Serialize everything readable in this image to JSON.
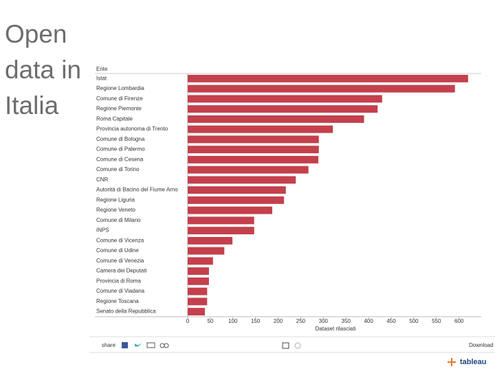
{
  "slide_title": "Open data in Italia",
  "chart_data": {
    "type": "bar",
    "orientation": "horizontal",
    "category_label": "Ente",
    "x_label": "Dataset rilasciati",
    "categories": [
      "Istat",
      "Regione Lombardia",
      "Comune di Firenze",
      "Regione Piemonte",
      "Roma Capitale",
      "Provincia autonoma di Trento",
      "Comune di Bologna",
      "Comune di Palermo",
      "Comune di Cesena",
      "Comune di Torino",
      "CNR",
      "Autorità di Bacino del Fiume Arno",
      "Regione Liguria",
      "Regione Veneto",
      "Comune di Milano",
      "INPS",
      "Comune di Vicenza",
      "Comune di Udine",
      "Comune di Venezia",
      "Camera dei Deputati",
      "Provincia di Roma",
      "Comune di Viadana",
      "Regione Toscana",
      "Senato della Repubblica"
    ],
    "values": [
      620,
      591,
      430,
      420,
      390,
      321,
      290,
      290,
      289,
      267,
      239,
      217,
      213,
      187,
      147,
      147,
      99,
      81,
      56,
      47,
      47,
      43,
      43,
      38
    ],
    "color": "#c3404c",
    "xlim": [
      0,
      640
    ],
    "xticks": [
      0,
      50,
      100,
      150,
      200,
      250,
      300,
      350,
      400,
      450,
      500,
      550,
      600
    ],
    "grid": false
  },
  "toolbar": {
    "share": "share",
    "download": "Download"
  },
  "logo": "tableau"
}
